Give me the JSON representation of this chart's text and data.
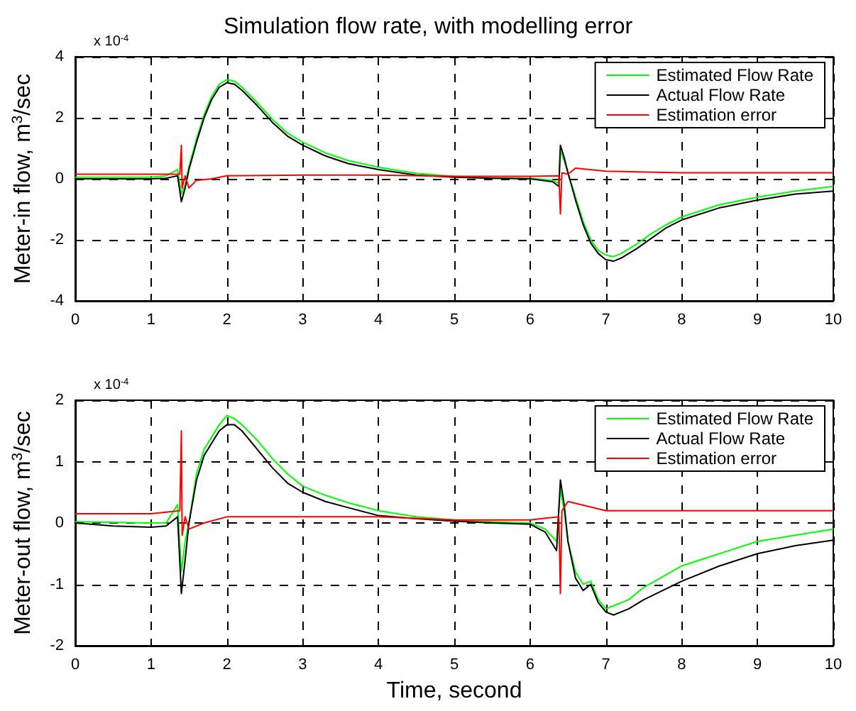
{
  "chart_data": [
    {
      "type": "line",
      "title": "Simulation flow rate, with modelling error",
      "ylabel": "Meter-in flow, m$^{3}$/sec",
      "annotations": [
        "x 10$^{-4}$"
      ],
      "xlim": [
        0,
        10
      ],
      "xticks": [
        0,
        1,
        2,
        3,
        4,
        5,
        6,
        7,
        8,
        9,
        10
      ],
      "ylim": [
        -4,
        4
      ],
      "yticks": [
        -4,
        -2,
        0,
        2,
        4
      ],
      "grid": true,
      "legend": "top right",
      "marker": "none",
      "line_style": "solid",
      "series": [
        {
          "name": "Estimated Flow Rate",
          "color": "#00ff00",
          "x": [
            0,
            1,
            1.2,
            1.35,
            1.4,
            1.45,
            1.5,
            1.6,
            1.7,
            1.8,
            1.9,
            2,
            2.1,
            2.2,
            2.4,
            2.6,
            2.8,
            3,
            3.3,
            3.6,
            4,
            4.5,
            5,
            5.5,
            6,
            6.3,
            6.38,
            6.4,
            6.45,
            6.5,
            6.6,
            6.7,
            6.8,
            6.9,
            7,
            7.1,
            7.2,
            7.4,
            7.6,
            7.8,
            8,
            8.5,
            9,
            9.5,
            10
          ],
          "values": [
            0.05,
            0.05,
            0.1,
            0.3,
            -0.5,
            -0.2,
            0.4,
            1.3,
            2.1,
            2.7,
            3.1,
            3.25,
            3.2,
            3,
            2.5,
            1.95,
            1.5,
            1.2,
            0.85,
            0.6,
            0.38,
            0.18,
            0.08,
            0.03,
            0.02,
            -0.05,
            -0.15,
            0.9,
            0.6,
            0.2,
            -0.6,
            -1.4,
            -2,
            -2.35,
            -2.5,
            -2.55,
            -2.45,
            -2.15,
            -1.8,
            -1.5,
            -1.25,
            -0.85,
            -0.6,
            -0.4,
            -0.25
          ]
        },
        {
          "name": "Actual Flow Rate",
          "color": "#000000",
          "x": [
            0,
            1,
            1.2,
            1.35,
            1.4,
            1.45,
            1.5,
            1.6,
            1.7,
            1.8,
            1.9,
            2,
            2.1,
            2.2,
            2.4,
            2.6,
            2.8,
            3,
            3.3,
            3.6,
            4,
            4.5,
            5,
            5.5,
            6,
            6.3,
            6.38,
            6.4,
            6.45,
            6.5,
            6.6,
            6.7,
            6.8,
            6.9,
            7,
            7.1,
            7.2,
            7.4,
            7.6,
            7.8,
            8,
            8.5,
            9,
            9.5,
            10
          ],
          "values": [
            0,
            0,
            0.02,
            0.1,
            -0.75,
            -0.3,
            0.3,
            1.2,
            2,
            2.6,
            3,
            3.15,
            3.1,
            2.9,
            2.4,
            1.85,
            1.4,
            1.1,
            0.75,
            0.5,
            0.3,
            0.12,
            0.05,
            0.02,
            0,
            -0.1,
            -0.25,
            1.1,
            0.7,
            0.2,
            -0.7,
            -1.5,
            -2.1,
            -2.45,
            -2.65,
            -2.7,
            -2.6,
            -2.3,
            -1.95,
            -1.6,
            -1.35,
            -0.95,
            -0.7,
            -0.5,
            -0.4
          ]
        },
        {
          "name": "Estimation error",
          "color": "#ff0000",
          "x": [
            0,
            0.5,
            1,
            1.38,
            1.4,
            1.41,
            1.45,
            1.5,
            1.6,
            1.8,
            2,
            3,
            4,
            5,
            6,
            6.38,
            6.4,
            6.42,
            6.5,
            6.6,
            7,
            8,
            9,
            10
          ],
          "values": [
            0.15,
            0.15,
            0.15,
            0.15,
            1.1,
            -0.3,
            0.1,
            -0.3,
            -0.05,
            0,
            0.1,
            0.12,
            0.12,
            0.08,
            0.08,
            0.1,
            -1.15,
            0.2,
            0.15,
            0.35,
            0.25,
            0.2,
            0.2,
            0.2
          ]
        }
      ]
    },
    {
      "type": "line",
      "xlabel": "Time, second",
      "ylabel": "Meter-out flow, m$^{3}$/sec",
      "annotations": [
        "x 10$^{-4}$"
      ],
      "xlim": [
        0,
        10
      ],
      "xticks": [
        0,
        1,
        2,
        3,
        4,
        5,
        6,
        7,
        8,
        9,
        10
      ],
      "ylim": [
        -2,
        2
      ],
      "yticks": [
        -2,
        -1,
        0,
        1,
        2
      ],
      "grid": true,
      "legend": "top right",
      "marker": "none",
      "line_style": "solid",
      "series": [
        {
          "name": "Estimated Flow Rate",
          "color": "#00ff00",
          "x": [
            0,
            1,
            1.2,
            1.35,
            1.4,
            1.45,
            1.5,
            1.6,
            1.7,
            1.8,
            1.9,
            2,
            2.1,
            2.2,
            2.4,
            2.6,
            2.8,
            3,
            3.3,
            3.6,
            4,
            4.5,
            5,
            5.5,
            6,
            6.2,
            6.35,
            6.4,
            6.45,
            6.5,
            6.6,
            6.7,
            6.8,
            6.9,
            7,
            7.1,
            7.3,
            7.5,
            8,
            8.5,
            9,
            9.5,
            10
          ],
          "values": [
            0.02,
            0,
            0,
            0.3,
            -0.8,
            -0.3,
            0,
            0.8,
            1.2,
            1.4,
            1.6,
            1.75,
            1.7,
            1.6,
            1.35,
            1.05,
            0.8,
            0.6,
            0.45,
            0.33,
            0.2,
            0.1,
            0.05,
            0.02,
            0,
            -0.1,
            -0.3,
            0.55,
            0.2,
            -0.3,
            -0.8,
            -1,
            -0.95,
            -1.25,
            -1.4,
            -1.35,
            -1.25,
            -1.05,
            -0.7,
            -0.5,
            -0.3,
            -0.2,
            -0.1
          ]
        },
        {
          "name": "Actual Flow Rate",
          "color": "#000000",
          "x": [
            0,
            0.5,
            1,
            1.2,
            1.35,
            1.4,
            1.45,
            1.5,
            1.6,
            1.7,
            1.8,
            1.9,
            2,
            2.1,
            2.2,
            2.4,
            2.6,
            2.8,
            3,
            3.3,
            3.6,
            4,
            4.5,
            5,
            5.5,
            6,
            6.2,
            6.35,
            6.4,
            6.45,
            6.5,
            6.6,
            6.7,
            6.8,
            6.9,
            7,
            7.1,
            7.3,
            7.5,
            8,
            8.5,
            9,
            9.5,
            10
          ],
          "values": [
            0,
            -0.05,
            -0.07,
            -0.05,
            0.1,
            -1.15,
            -0.6,
            0,
            0.7,
            1.1,
            1.3,
            1.5,
            1.6,
            1.6,
            1.5,
            1.2,
            0.9,
            0.65,
            0.5,
            0.35,
            0.25,
            0.12,
            0.07,
            0.03,
            0,
            -0.02,
            -0.15,
            -0.45,
            0.7,
            0.3,
            -0.3,
            -0.9,
            -1.1,
            -1,
            -1.3,
            -1.45,
            -1.5,
            -1.4,
            -1.25,
            -0.95,
            -0.7,
            -0.5,
            -0.37,
            -0.28
          ]
        },
        {
          "name": "Estimation error",
          "color": "#ff0000",
          "x": [
            0,
            0.5,
            1,
            1.38,
            1.4,
            1.41,
            1.45,
            1.5,
            1.7,
            2,
            3,
            4,
            5,
            6,
            6.38,
            6.4,
            6.42,
            6.5,
            7,
            8,
            9,
            10
          ],
          "values": [
            0.15,
            0.15,
            0.15,
            0.2,
            1.5,
            -0.2,
            0.1,
            -0.1,
            0,
            0.1,
            0.1,
            0.1,
            0.05,
            0.05,
            0.1,
            -1.15,
            0.2,
            0.35,
            0.2,
            0.2,
            0.2,
            0.2
          ]
        }
      ]
    }
  ]
}
